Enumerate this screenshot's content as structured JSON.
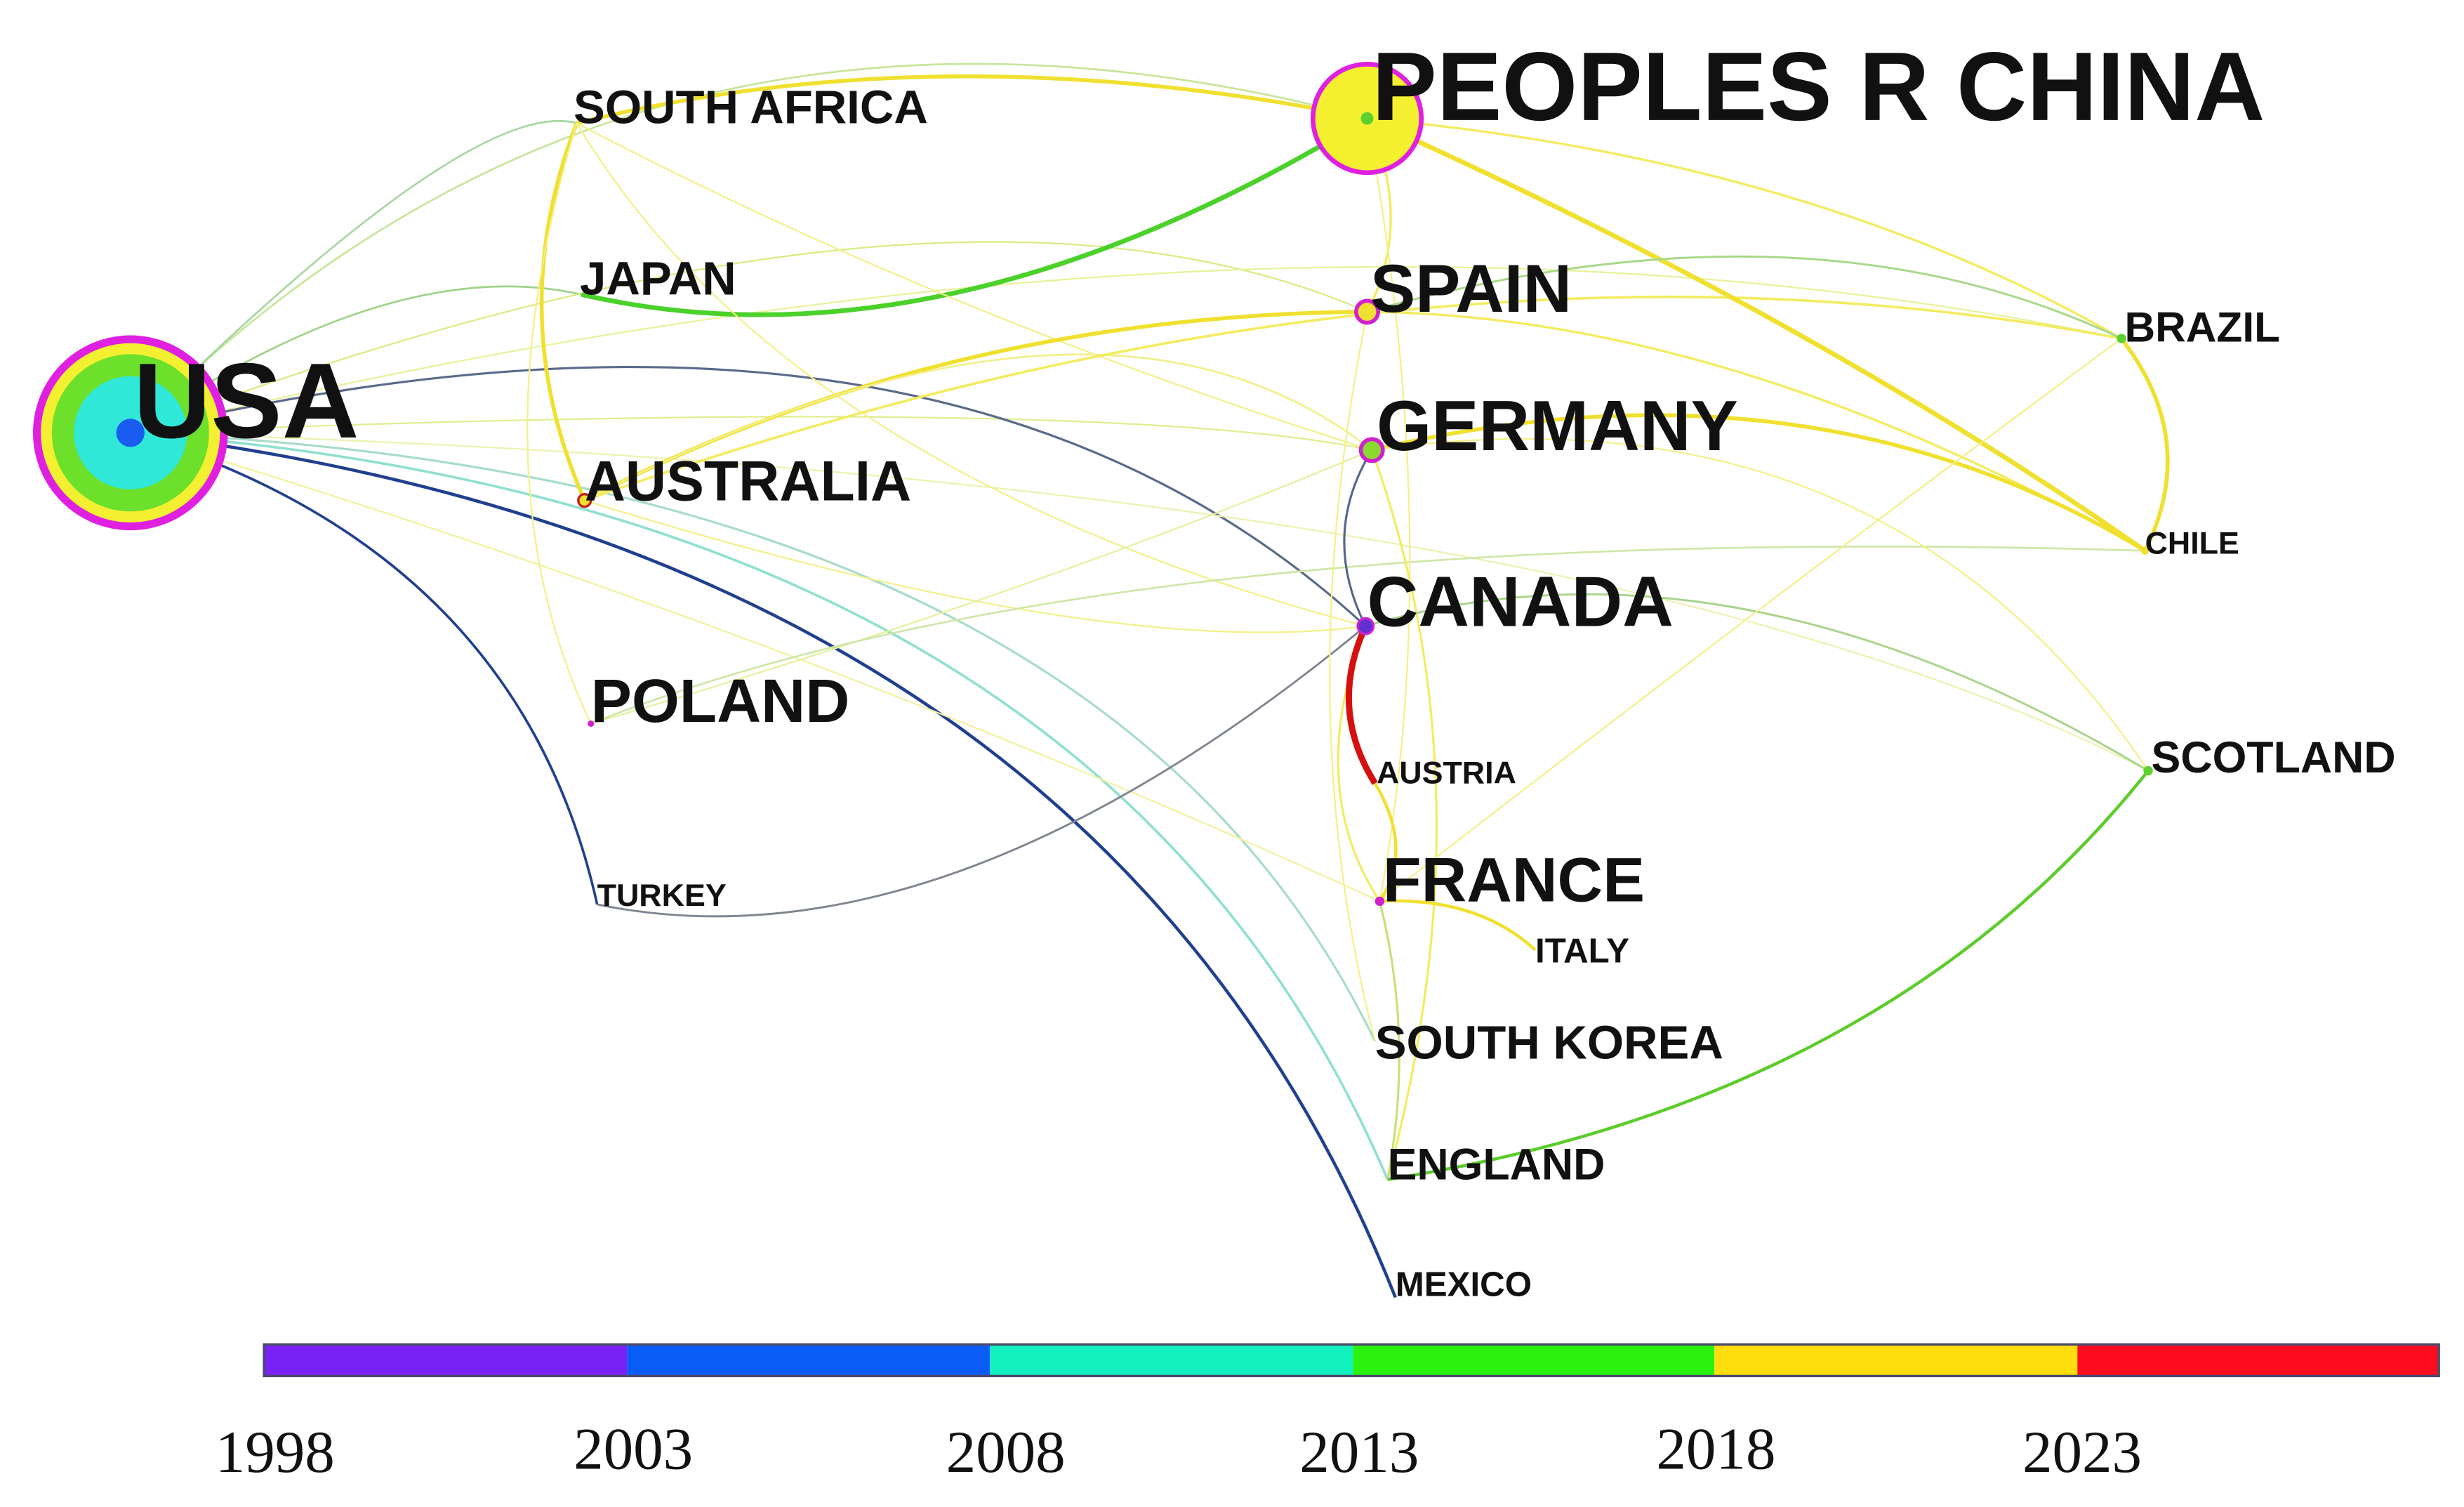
{
  "nodes": [
    {
      "label": "USA"
    },
    {
      "label": "PEOPLES R CHINA"
    },
    {
      "label": "SOUTH AFRICA"
    },
    {
      "label": "JAPAN"
    },
    {
      "label": "AUSTRALIA"
    },
    {
      "label": "POLAND"
    },
    {
      "label": "TURKEY"
    },
    {
      "label": "SPAIN"
    },
    {
      "label": "GERMANY"
    },
    {
      "label": "CANADA"
    },
    {
      "label": "AUSTRIA"
    },
    {
      "label": "FRANCE"
    },
    {
      "label": "ITALY"
    },
    {
      "label": "SOUTH KOREA"
    },
    {
      "label": "ENGLAND"
    },
    {
      "label": "MEXICO"
    },
    {
      "label": "BRAZIL"
    },
    {
      "label": "CHILE"
    },
    {
      "label": "SCOTLAND"
    }
  ],
  "legend": {
    "years": [
      "1998",
      "2003",
      "2008",
      "2013",
      "2018",
      "2023"
    ]
  }
}
